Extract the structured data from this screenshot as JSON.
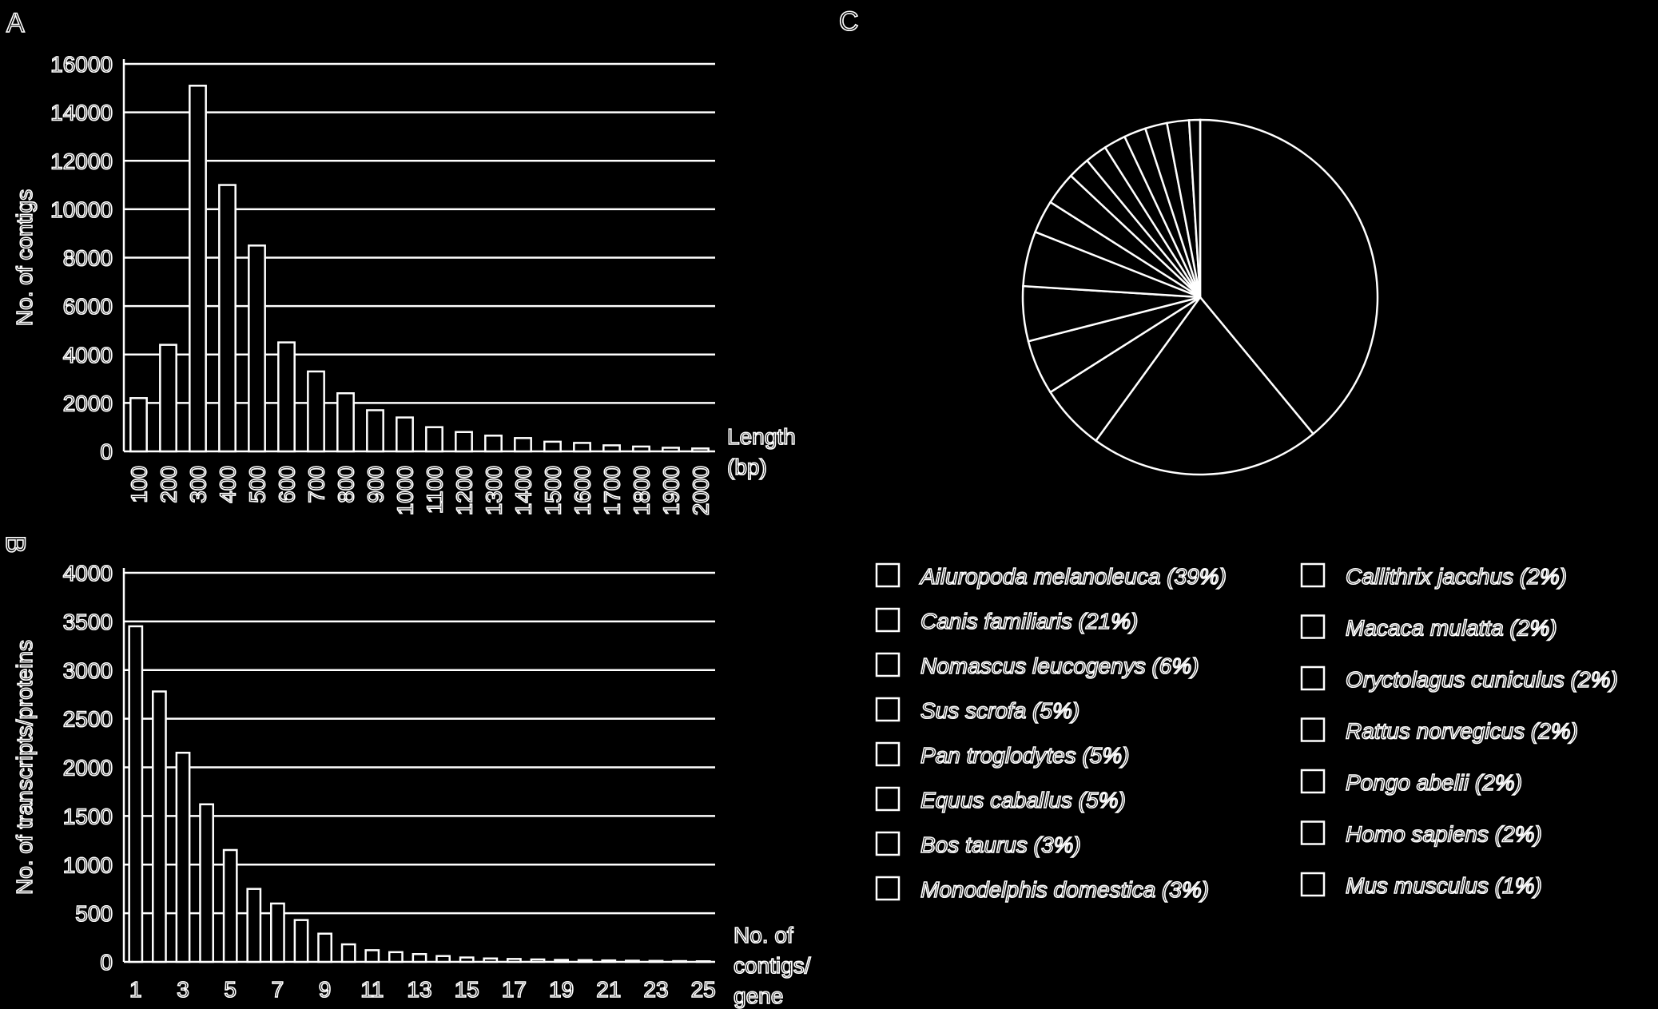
{
  "panels": {
    "a": "A",
    "b": "B",
    "c": "C"
  },
  "chart_data": [
    {
      "type": "bar",
      "panel": "A",
      "ylabel": "No. of contigs",
      "xlabel": [
        "Length",
        "(bp)"
      ],
      "ylim": [
        0,
        16000
      ],
      "yticks": [
        0,
        2000,
        4000,
        6000,
        8000,
        10000,
        12000,
        14000,
        16000
      ],
      "categories": [
        "100",
        "200",
        "300",
        "400",
        "500",
        "600",
        "700",
        "800",
        "900",
        "1000",
        "1100",
        "1200",
        "1300",
        "1400",
        "1500",
        "1600",
        "1700",
        "1800",
        "1900",
        "2000"
      ],
      "values": [
        2200,
        4400,
        15100,
        11000,
        8500,
        4500,
        3300,
        2400,
        1700,
        1400,
        1000,
        800,
        650,
        550,
        400,
        350,
        250,
        200,
        150,
        120
      ],
      "grid": true
    },
    {
      "type": "bar",
      "panel": "B",
      "ylabel": "No. of transcripts/proteins",
      "xlabel": [
        "No. of",
        "contigs/",
        "gene"
      ],
      "ylim": [
        0,
        4000
      ],
      "yticks": [
        0,
        500,
        1000,
        1500,
        2000,
        2500,
        3000,
        3500,
        4000
      ],
      "categories": [
        "1",
        "2",
        "3",
        "4",
        "5",
        "6",
        "7",
        "8",
        "9",
        "10",
        "11",
        "12",
        "13",
        "14",
        "15",
        "16",
        "17",
        "18",
        "19",
        "20",
        "21",
        "22",
        "23",
        "24",
        "25"
      ],
      "tick_labels": [
        "1",
        "3",
        "5",
        "7",
        "9",
        "11",
        "13",
        "15",
        "17",
        "19",
        "21",
        "23",
        "25"
      ],
      "values": [
        3450,
        2780,
        2150,
        1620,
        1150,
        750,
        600,
        430,
        290,
        180,
        120,
        100,
        80,
        60,
        45,
        35,
        30,
        25,
        20,
        18,
        15,
        12,
        10,
        8,
        6
      ],
      "grid": true
    },
    {
      "type": "pie",
      "panel": "C",
      "legend_placement": "below",
      "slices": [
        {
          "label": "Ailuropoda melanoleuca (39%)",
          "value": 39
        },
        {
          "label": "Canis familiaris (21%)",
          "value": 21
        },
        {
          "label": "Nomascus leucogenys (6%)",
          "value": 6
        },
        {
          "label": "Sus scrofa (5%)",
          "value": 5
        },
        {
          "label": "Pan troglodytes (5%)",
          "value": 5
        },
        {
          "label": "Equus caballus (5%)",
          "value": 5
        },
        {
          "label": "Bos taurus (3%)",
          "value": 3
        },
        {
          "label": "Monodelphis domestica (3%)",
          "value": 3
        },
        {
          "label": "Callithrix jacchus (2%)",
          "value": 2
        },
        {
          "label": "Macaca mulatta (2%)",
          "value": 2
        },
        {
          "label": "Oryctolagus cuniculus (2%)",
          "value": 2
        },
        {
          "label": "Rattus norvegicus (2%)",
          "value": 2
        },
        {
          "label": "Pongo abelii (2%)",
          "value": 2
        },
        {
          "label": "Homo sapiens (2%)",
          "value": 2
        },
        {
          "label": "Mus musculus (1%)",
          "value": 1
        }
      ]
    }
  ]
}
